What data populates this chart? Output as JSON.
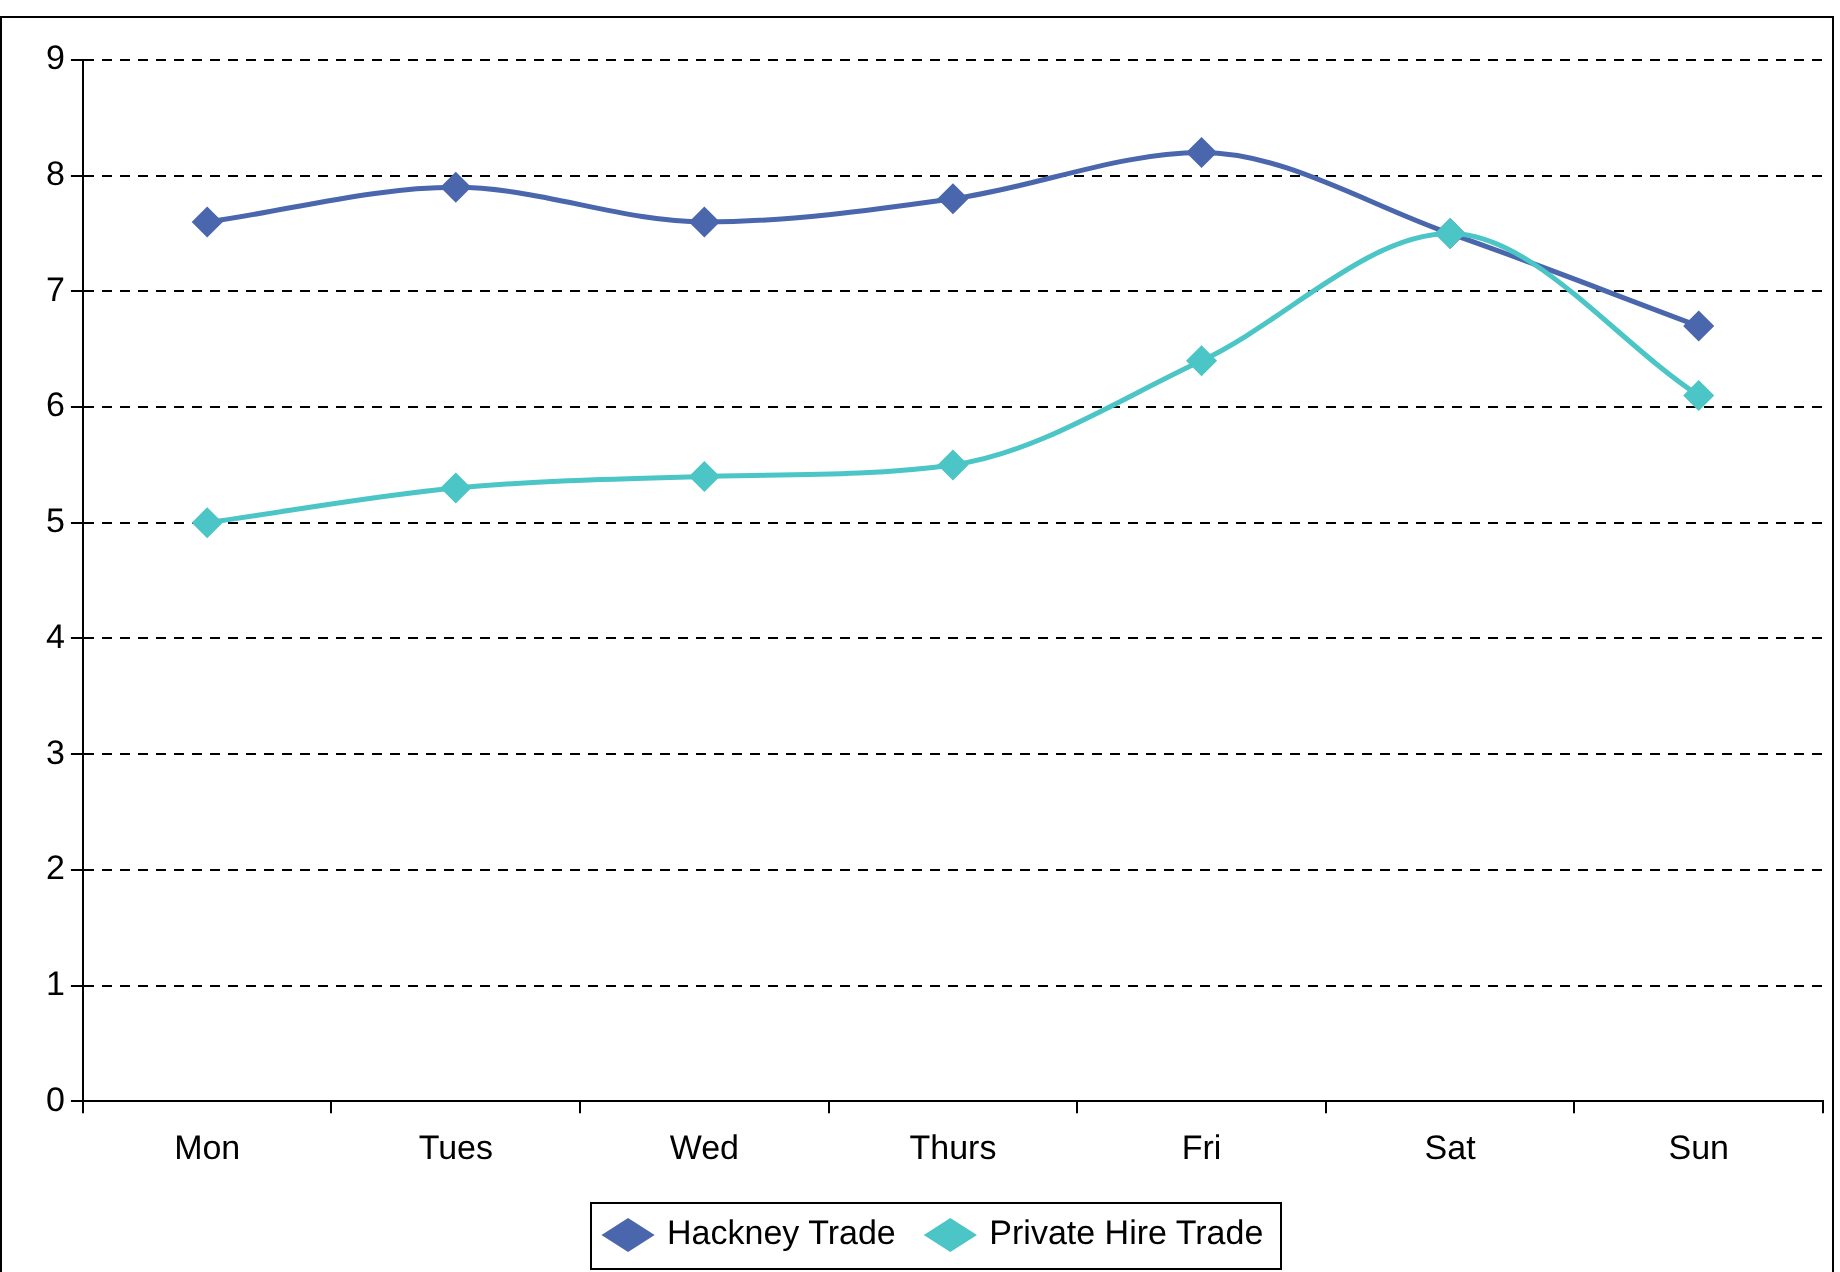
{
  "chart_data": {
    "type": "line",
    "categories": [
      "Mon",
      "Tues",
      "Wed",
      "Thurs",
      "Fri",
      "Sat",
      "Sun"
    ],
    "series": [
      {
        "name": "Hackney Trade",
        "color": "#4a66ac",
        "values": [
          7.6,
          7.9,
          7.6,
          7.8,
          8.2,
          7.5,
          6.7
        ]
      },
      {
        "name": "Private Hire Trade",
        "color": "#4bc5c5",
        "values": [
          5.0,
          5.3,
          5.4,
          5.5,
          6.4,
          7.5,
          6.1
        ]
      }
    ],
    "ylim": [
      0,
      9
    ],
    "yticks": [
      0,
      1,
      2,
      3,
      4,
      5,
      6,
      7,
      8,
      9
    ],
    "grid": "y",
    "legend": "bottom",
    "marker": "diamond",
    "line_style": "solid"
  }
}
